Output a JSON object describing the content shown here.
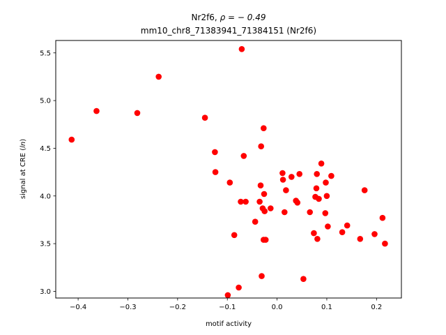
{
  "chart_data": {
    "type": "scatter",
    "title_line1_prefix": "Nr2f6, ",
    "title_line1_math": "ρ = − 0.49",
    "title_line2": "mm10_chr8_71383941_71384151 (Nr2f6)",
    "xlabel": "motif activity",
    "ylabel_prefix": "signal at CRE (",
    "ylabel_math": "ln",
    "ylabel_suffix": ")",
    "xlim": [
      -0.445,
      0.25
    ],
    "ylim": [
      2.93,
      5.63
    ],
    "xticks": [
      {
        "value": -0.4,
        "label": "−0.4"
      },
      {
        "value": -0.3,
        "label": "−0.3"
      },
      {
        "value": -0.2,
        "label": "−0.2"
      },
      {
        "value": -0.1,
        "label": "−0.1"
      },
      {
        "value": 0.0,
        "label": "0.0"
      },
      {
        "value": 0.1,
        "label": "0.1"
      },
      {
        "value": 0.2,
        "label": "0.2"
      }
    ],
    "yticks": [
      {
        "value": 3.0,
        "label": "3.0"
      },
      {
        "value": 3.5,
        "label": "3.5"
      },
      {
        "value": 4.0,
        "label": "4.0"
      },
      {
        "value": 4.5,
        "label": "4.5"
      },
      {
        "value": 5.0,
        "label": "5.0"
      },
      {
        "value": 5.5,
        "label": "5.5"
      }
    ],
    "grid": false,
    "marker_color": "#ff0000",
    "x": [
      -0.413,
      -0.363,
      -0.281,
      -0.238,
      -0.145,
      -0.125,
      -0.124,
      -0.071,
      -0.027,
      -0.067,
      -0.032,
      -0.095,
      -0.086,
      -0.073,
      -0.063,
      -0.044,
      -0.035,
      -0.033,
      -0.029,
      -0.025,
      -0.026,
      -0.023,
      -0.013,
      -0.031,
      -0.027,
      -0.099,
      -0.077,
      0.011,
      0.012,
      0.018,
      0.029,
      0.045,
      0.015,
      0.038,
      0.041,
      0.066,
      0.074,
      0.077,
      0.079,
      0.08,
      0.081,
      0.084,
      0.089,
      0.097,
      0.098,
      0.1,
      0.102,
      0.109,
      0.131,
      0.141,
      0.167,
      0.176,
      0.196,
      0.212,
      0.217,
      0.053
    ],
    "y": [
      4.59,
      4.89,
      4.87,
      5.25,
      4.82,
      4.46,
      4.25,
      5.54,
      4.71,
      4.42,
      4.52,
      4.14,
      3.59,
      3.94,
      3.94,
      3.73,
      3.94,
      4.11,
      3.87,
      3.84,
      4.02,
      3.54,
      3.87,
      3.16,
      3.54,
      2.96,
      3.04,
      4.24,
      4.17,
      4.06,
      4.2,
      4.23,
      3.83,
      3.95,
      3.93,
      3.83,
      3.61,
      3.99,
      4.08,
      4.23,
      3.55,
      3.97,
      4.34,
      3.82,
      4.14,
      4.0,
      3.68,
      4.21,
      3.62,
      3.69,
      3.55,
      4.06,
      3.6,
      3.77,
      3.5,
      3.13
    ]
  }
}
